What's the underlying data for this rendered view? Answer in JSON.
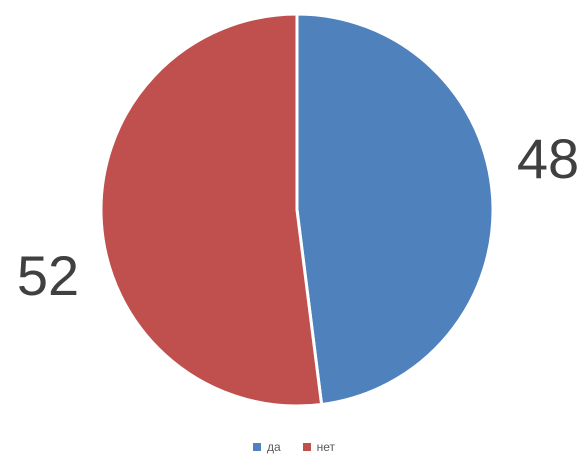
{
  "chart_data": {
    "type": "pie",
    "categories": [
      "да",
      "нет"
    ],
    "values": [
      48,
      52
    ],
    "colors": [
      "#4F81BD",
      "#C0504D"
    ],
    "data_labels": [
      "48",
      "52"
    ],
    "start_angle_deg": 0,
    "direction": "clockwise",
    "legend_position": "bottom"
  }
}
